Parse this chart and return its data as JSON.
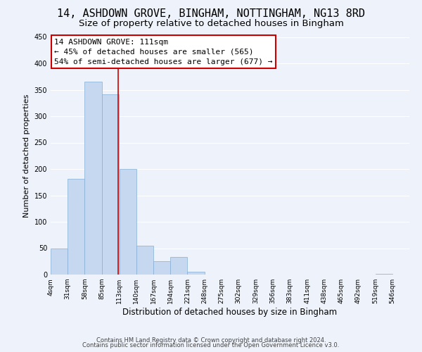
{
  "title": "14, ASHDOWN GROVE, BINGHAM, NOTTINGHAM, NG13 8RD",
  "subtitle": "Size of property relative to detached houses in Bingham",
  "xlabel": "Distribution of detached houses by size in Bingham",
  "ylabel": "Number of detached properties",
  "bar_color": "#c5d8f0",
  "bar_edge_color": "#85aed4",
  "background_color": "#eef2fa",
  "grid_color": "white",
  "bin_edges": [
    4,
    31,
    58,
    85,
    113,
    140,
    167,
    194,
    221,
    248,
    275,
    302,
    329,
    356,
    383,
    411,
    438,
    465,
    492,
    519,
    546
  ],
  "bin_labels": [
    "4sqm",
    "31sqm",
    "58sqm",
    "85sqm",
    "113sqm",
    "140sqm",
    "167sqm",
    "194sqm",
    "221sqm",
    "248sqm",
    "275sqm",
    "302sqm",
    "329sqm",
    "356sqm",
    "383sqm",
    "411sqm",
    "438sqm",
    "465sqm",
    "492sqm",
    "519sqm",
    "546sqm"
  ],
  "bar_heights": [
    49,
    181,
    366,
    341,
    200,
    55,
    26,
    33,
    5,
    0,
    0,
    0,
    0,
    0,
    0,
    0,
    0,
    0,
    0,
    2
  ],
  "vline_x": 111,
  "vline_color": "#cc0000",
  "annotation_title": "14 ASHDOWN GROVE: 111sqm",
  "annotation_line1": "← 45% of detached houses are smaller (565)",
  "annotation_line2": "54% of semi-detached houses are larger (677) →",
  "annotation_box_color": "white",
  "annotation_box_edge": "#cc0000",
  "footer1": "Contains HM Land Registry data © Crown copyright and database right 2024.",
  "footer2": "Contains public sector information licensed under the Open Government Licence v3.0.",
  "ylim": [
    0,
    450
  ],
  "title_fontsize": 11,
  "subtitle_fontsize": 9.5
}
